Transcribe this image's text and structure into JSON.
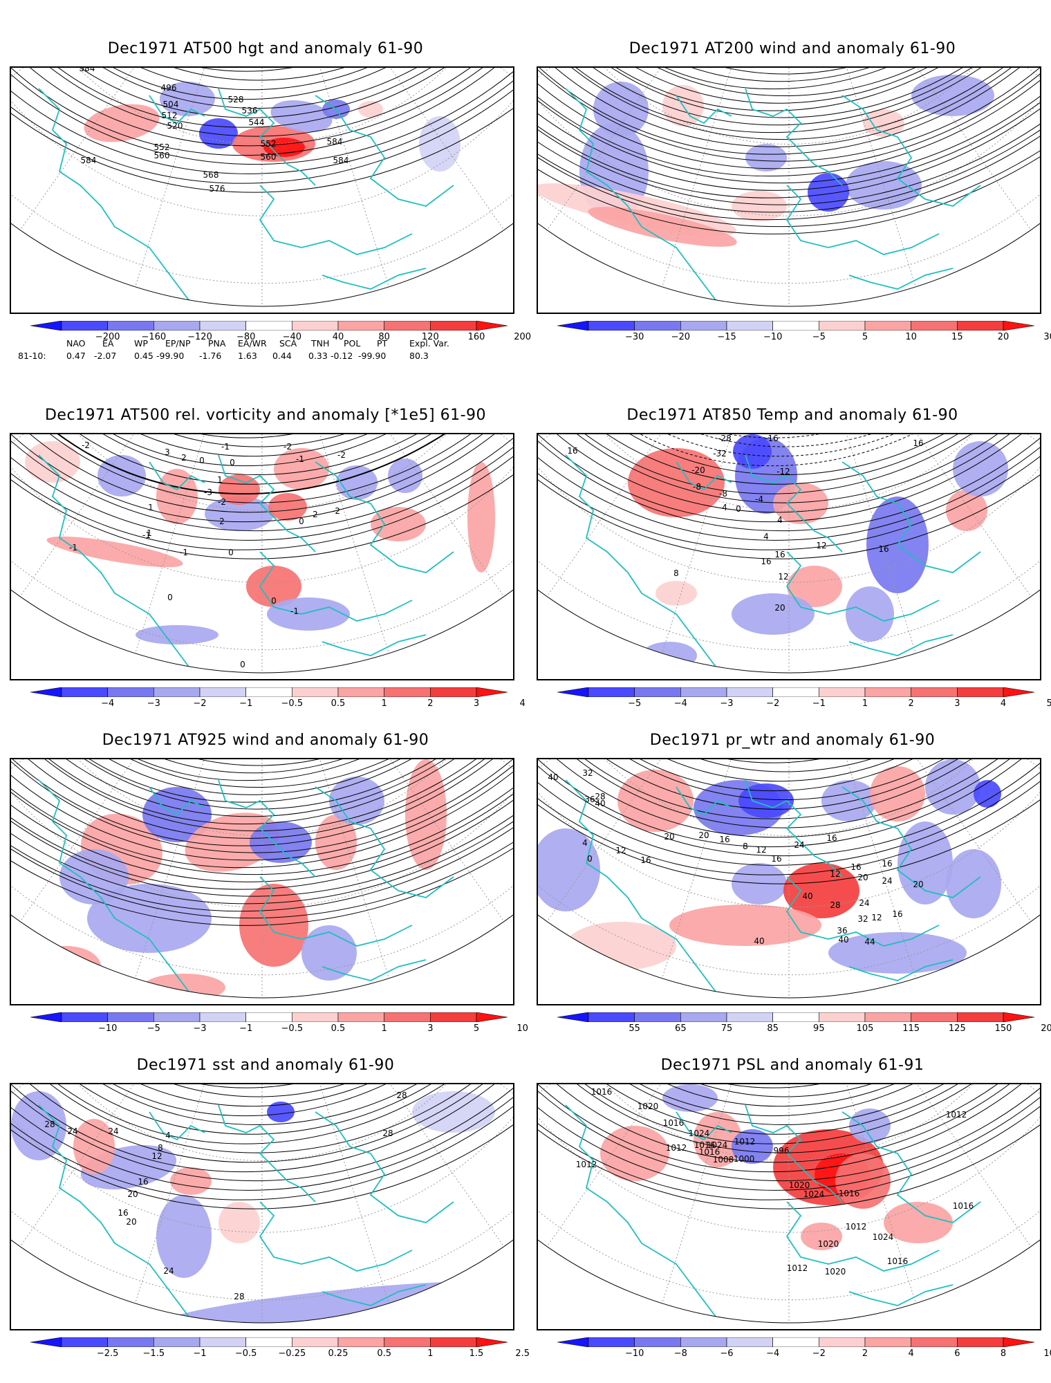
{
  "panels": [
    {
      "id": "z500",
      "title": "Dec1971 AT500 hgt and anomaly 61-90",
      "contour_labels": [
        "584",
        "496",
        "504",
        "512",
        "520",
        "528",
        "536",
        "544",
        "552",
        "552",
        "560",
        "560",
        "568",
        "576",
        "584",
        "584",
        "584"
      ],
      "colorbar": {
        "labels": [
          "−200",
          "−160",
          "−120",
          "−80",
          "−40",
          "40",
          "80",
          "120",
          "160",
          "200"
        ],
        "colors": [
          "#1515ff",
          "#4a4aff",
          "#7878f0",
          "#a8a8f0",
          "#d2d2f5",
          "#ffffff",
          "#fdd0d0",
          "#fba4a4",
          "#f77272",
          "#f43e3e",
          "#ff1212"
        ]
      }
    },
    {
      "id": "u200",
      "title": "Dec1971 AT200 wind and anomaly 61-90",
      "contour_labels": [],
      "colorbar": {
        "labels": [
          "−30",
          "−20",
          "−15",
          "−10",
          "−5",
          "5",
          "10",
          "15",
          "20",
          "30"
        ],
        "colors": [
          "#1515ff",
          "#4a4aff",
          "#7878f0",
          "#a8a8f0",
          "#d2d2f5",
          "#ffffff",
          "#fdd0d0",
          "#fba4a4",
          "#f77272",
          "#f43e3e",
          "#ff1212"
        ]
      }
    },
    {
      "id": "vort500",
      "title": "Dec1971 AT500 rel. vorticity and anomaly [*1e5] 61-90",
      "contour_labels": [
        "-2",
        "3",
        "2",
        "0",
        "-1",
        "-2",
        "-1",
        "-2",
        "0",
        "1",
        "1",
        "-3",
        "-2",
        "2",
        "-1",
        "0",
        "1",
        "0",
        "-2",
        "2",
        "-1",
        "0",
        "-1",
        "0",
        "-1",
        "0"
      ],
      "colorbar": {
        "labels": [
          "−4",
          "−3",
          "−2",
          "−1",
          "−0.5",
          "0.5",
          "1",
          "2",
          "3",
          "4"
        ],
        "colors": [
          "#1515ff",
          "#4a4aff",
          "#7878f0",
          "#a8a8f0",
          "#d2d2f5",
          "#ffffff",
          "#fdd0d0",
          "#fba4a4",
          "#f77272",
          "#f43e3e",
          "#ff1212"
        ]
      }
    },
    {
      "id": "t850",
      "title": "Dec1971 AT850 Temp and anomaly 61-90",
      "contour_labels": [
        "16",
        "-28",
        "-16",
        "-32",
        "-20",
        "-12",
        "16",
        "-8",
        "-8",
        "-4",
        "4",
        "0",
        "4",
        "4",
        "8",
        "16",
        "12",
        "16",
        "12",
        "20",
        "16"
      ],
      "colorbar": {
        "labels": [
          "−5",
          "−4",
          "−3",
          "−2",
          "−1",
          "1",
          "2",
          "3",
          "4",
          "5"
        ],
        "colors": [
          "#1515ff",
          "#4a4aff",
          "#7878f0",
          "#a8a8f0",
          "#d2d2f5",
          "#ffffff",
          "#fdd0d0",
          "#fba4a4",
          "#f77272",
          "#f43e3e",
          "#ff1212"
        ]
      }
    },
    {
      "id": "u925",
      "title": "Dec1971 AT925 wind and anomaly 61-90",
      "contour_labels": [],
      "colorbar": {
        "labels": [
          "−10",
          "−5",
          "−3",
          "−1",
          "−0.5",
          "0.5",
          "1",
          "3",
          "5",
          "10"
        ],
        "colors": [
          "#1515ff",
          "#4a4aff",
          "#7878f0",
          "#a8a8f0",
          "#d2d2f5",
          "#ffffff",
          "#fdd0d0",
          "#fba4a4",
          "#f77272",
          "#f43e3e",
          "#ff1212"
        ]
      }
    },
    {
      "id": "prwtr",
      "title": "Dec1971 pr_wtr and anomaly 61-90",
      "contour_labels": [
        "40",
        "32",
        "28",
        "36",
        "40",
        "4",
        "0",
        "12",
        "16",
        "20",
        "20",
        "16",
        "8",
        "12",
        "16",
        "24",
        "16",
        "12",
        "16",
        "20",
        "24",
        "40",
        "28",
        "24",
        "12",
        "16",
        "20",
        "16",
        "32",
        "36",
        "40",
        "40",
        "44"
      ],
      "colorbar": {
        "labels": [
          "55",
          "65",
          "75",
          "85",
          "95",
          "105",
          "115",
          "125",
          "150",
          "200"
        ],
        "colors": [
          "#1515ff",
          "#4a4aff",
          "#7878f0",
          "#a8a8f0",
          "#d2d2f5",
          "#ffffff",
          "#fdd0d0",
          "#fba4a4",
          "#f77272",
          "#f43e3e",
          "#ff1212"
        ]
      }
    },
    {
      "id": "sst",
      "title": "Dec1971 sst and anomaly 61-90",
      "contour_labels": [
        "28",
        "24",
        "24",
        "4",
        "8",
        "12",
        "16",
        "20",
        "16",
        "20",
        "24",
        "28",
        "28",
        "28"
      ],
      "colorbar": {
        "labels": [
          "−2.5",
          "−1.5",
          "−1",
          "−0.5",
          "−0.25",
          "0.25",
          "0.5",
          "1",
          "1.5",
          "2.5"
        ],
        "colors": [
          "#1515ff",
          "#4a4aff",
          "#7878f0",
          "#a8a8f0",
          "#d2d2f5",
          "#ffffff",
          "#fdd0d0",
          "#fba4a4",
          "#f77272",
          "#f43e3e",
          "#ff1212"
        ]
      }
    },
    {
      "id": "psl",
      "title": "Dec1971 PSL and anomaly 61-91",
      "contour_labels": [
        "1016",
        "1020",
        "1016",
        "1012",
        "1024",
        "1024",
        "1016",
        "1016",
        "1012",
        "1000",
        "996",
        "1008",
        "1020",
        "1024",
        "1016",
        "1012",
        "1024",
        "1016",
        "1020",
        "1020",
        "1016",
        "1012",
        "1012",
        "1012"
      ],
      "colorbar": {
        "labels": [
          "−10",
          "−8",
          "−6",
          "−4",
          "−2",
          "2",
          "4",
          "6",
          "8",
          "10"
        ],
        "colors": [
          "#1515ff",
          "#4a4aff",
          "#7878f0",
          "#a8a8f0",
          "#d2d2f5",
          "#ffffff",
          "#fdd0d0",
          "#fba4a4",
          "#f77272",
          "#f43e3e",
          "#ff1212"
        ]
      }
    }
  ],
  "indices": {
    "headers": [
      "NAO",
      "EA",
      "WP",
      "EP/NP",
      "PNA",
      "EA/WR",
      "SCA",
      "TNH",
      "POL",
      "PT",
      "Expl. Var."
    ],
    "row_label": "81-10:",
    "values": [
      "0.47",
      "-2.07",
      "0.45",
      "-99.90",
      "-1.76",
      "1.63",
      "0.44",
      "0.33",
      "-0.12",
      "-99.90",
      "80.3"
    ]
  }
}
